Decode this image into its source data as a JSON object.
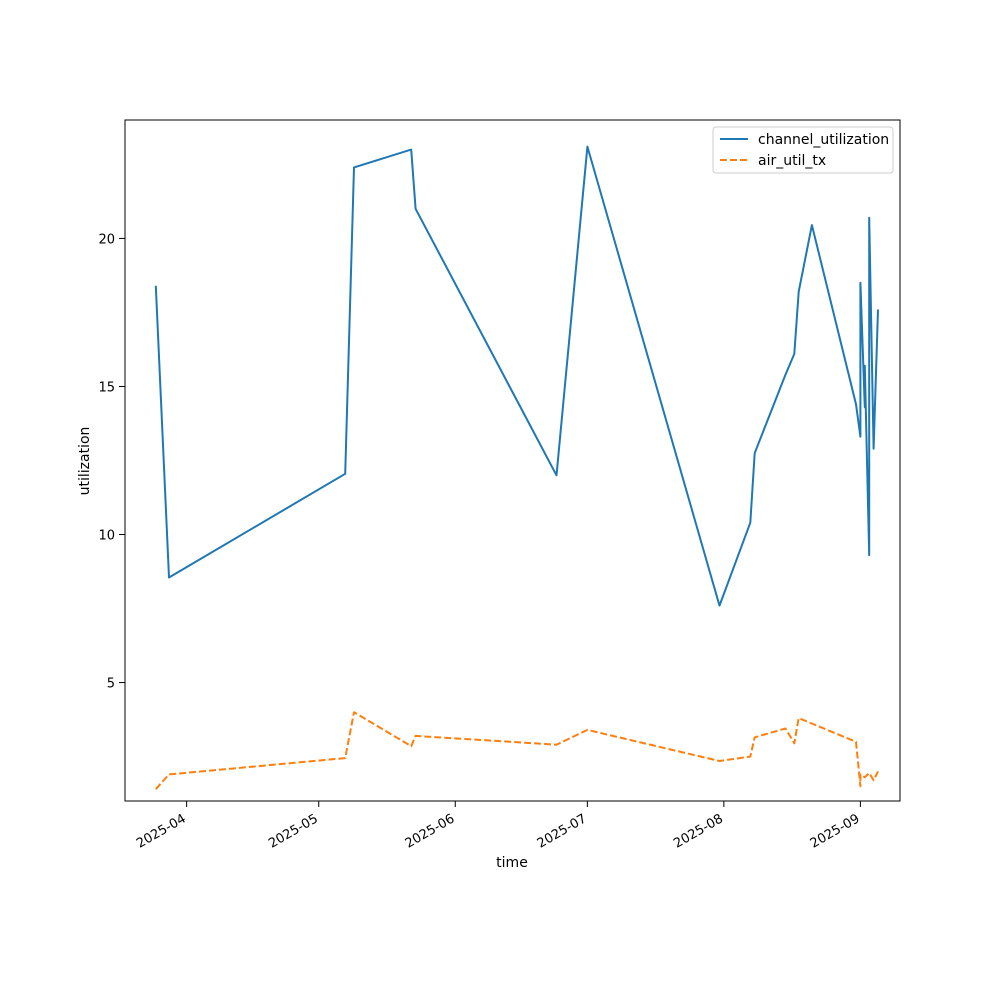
{
  "chart_data": {
    "type": "line",
    "title": "",
    "xlabel": "time",
    "ylabel": "utilization",
    "x_type": "date",
    "xlim": [
      "2025-03-18",
      "2025-09-10"
    ],
    "ylim": [
      1.0,
      24.0
    ],
    "x_ticks": [
      "2025-04-01",
      "2025-05-01",
      "2025-06-01",
      "2025-07-01",
      "2025-08-01",
      "2025-09-01"
    ],
    "x_tick_labels": [
      "2025-04",
      "2025-05",
      "2025-06",
      "2025-07",
      "2025-08",
      "2025-09"
    ],
    "y_ticks": [
      5,
      10,
      15,
      20
    ],
    "y_tick_labels": [
      "5",
      "10",
      "15",
      "20"
    ],
    "grid": false,
    "legend_position": "top-right",
    "series": [
      {
        "name": "channel_utilization",
        "color": "#1f77b4",
        "style": "solid",
        "points": [
          [
            "2025-03-25",
            18.4
          ],
          [
            "2025-03-28",
            8.55
          ],
          [
            "2025-05-07",
            12.05
          ],
          [
            "2025-05-09",
            22.4
          ],
          [
            "2025-05-22",
            23.0
          ],
          [
            "2025-05-23",
            21.0
          ],
          [
            "2025-06-24",
            12.0
          ],
          [
            "2025-07-01",
            23.1
          ],
          [
            "2025-07-31",
            7.6
          ],
          [
            "2025-08-07",
            10.4
          ],
          [
            "2025-08-08",
            12.75
          ],
          [
            "2025-08-15",
            15.4
          ],
          [
            "2025-08-17",
            16.1
          ],
          [
            "2025-08-18",
            18.2
          ],
          [
            "2025-08-21",
            20.45
          ],
          [
            "2025-08-31",
            14.4
          ],
          [
            "2025-09-01",
            13.3
          ],
          [
            "2025-09-01",
            18.5
          ],
          [
            "2025-09-02",
            14.3
          ],
          [
            "2025-09-02",
            15.7
          ],
          [
            "2025-09-03",
            9.3
          ],
          [
            "2025-09-03",
            20.7
          ],
          [
            "2025-09-04",
            12.9
          ],
          [
            "2025-09-05",
            17.6
          ]
        ]
      },
      {
        "name": "air_util_tx",
        "color": "#ff7f0e",
        "style": "dashed",
        "points": [
          [
            "2025-03-25",
            1.4
          ],
          [
            "2025-03-28",
            1.9
          ],
          [
            "2025-05-07",
            2.45
          ],
          [
            "2025-05-09",
            4.0
          ],
          [
            "2025-05-22",
            2.85
          ],
          [
            "2025-05-23",
            3.2
          ],
          [
            "2025-06-24",
            2.9
          ],
          [
            "2025-07-01",
            3.4
          ],
          [
            "2025-07-31",
            2.35
          ],
          [
            "2025-08-07",
            2.5
          ],
          [
            "2025-08-08",
            3.15
          ],
          [
            "2025-08-15",
            3.45
          ],
          [
            "2025-08-17",
            2.95
          ],
          [
            "2025-08-18",
            3.8
          ],
          [
            "2025-08-31",
            3.0
          ],
          [
            "2025-09-01",
            1.5
          ],
          [
            "2025-09-01",
            1.9
          ],
          [
            "2025-09-02",
            1.8
          ],
          [
            "2025-09-03",
            1.95
          ],
          [
            "2025-09-04",
            1.7
          ],
          [
            "2025-09-05",
            2.0
          ]
        ]
      }
    ]
  }
}
